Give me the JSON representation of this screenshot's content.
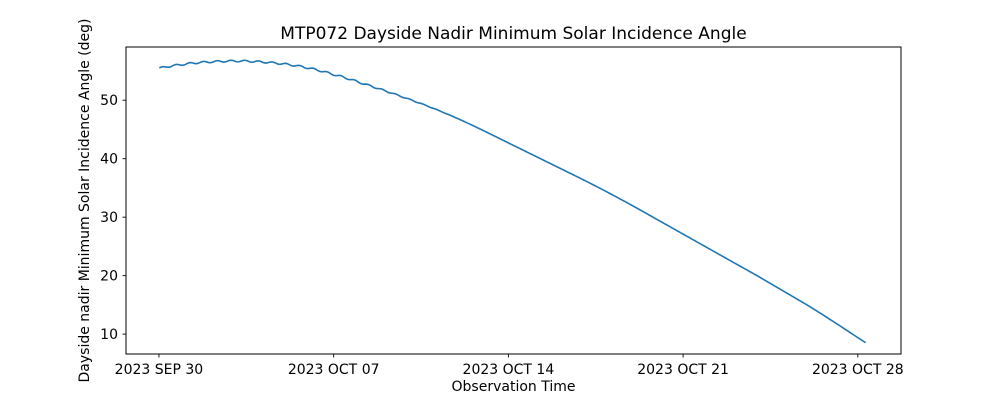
{
  "figure": {
    "background": "#ffffff"
  },
  "chart_data": {
    "type": "line",
    "title": "MTP072 Dayside Nadir Minimum Solar Incidence Angle",
    "xlabel": "Observation Time",
    "ylabel": "Dayside nadir Minimum Solar Incidence Angle (deg)",
    "x_unit": "days since 2023 SEP 30 00:00",
    "xlim": [
      -1.32,
      29.73
    ],
    "ylim": [
      6.6,
      59.1
    ],
    "grid": false,
    "legend": null,
    "line_color": "#1f77b4",
    "line_width": 1.6,
    "spine_color": "#000000",
    "xticks": [
      {
        "day": 0,
        "label": "2023 SEP 30"
      },
      {
        "day": 7,
        "label": "2023 OCT 07"
      },
      {
        "day": 14,
        "label": "2023 OCT 14"
      },
      {
        "day": 21,
        "label": "2023 OCT 21"
      },
      {
        "day": 28,
        "label": "2023 OCT 28"
      }
    ],
    "yticks": [
      10,
      20,
      30,
      40,
      50
    ],
    "series": [
      {
        "name": "dayside-nadir-minimum-solar-incidence-angle",
        "points": [
          [
            0.04,
            55.5
          ],
          [
            0.5,
            55.85
          ],
          [
            1,
            56.15
          ],
          [
            1.5,
            56.4
          ],
          [
            2,
            56.55
          ],
          [
            2.5,
            56.65
          ],
          [
            3,
            56.7
          ],
          [
            3.5,
            56.68
          ],
          [
            4,
            56.58
          ],
          [
            4.5,
            56.42
          ],
          [
            5,
            56.2
          ],
          [
            5.5,
            55.9
          ],
          [
            6,
            55.5
          ],
          [
            6.5,
            55.0
          ],
          [
            7,
            54.4
          ],
          [
            7.5,
            53.8
          ],
          [
            8,
            53.1
          ],
          [
            9,
            51.7
          ],
          [
            10,
            50.2
          ],
          [
            11,
            48.6
          ],
          [
            12,
            46.8
          ],
          [
            13,
            44.8
          ],
          [
            14,
            42.7
          ],
          [
            15,
            40.6
          ],
          [
            16,
            38.5
          ],
          [
            17,
            36.4
          ],
          [
            18,
            34.2
          ],
          [
            19,
            31.9
          ],
          [
            20,
            29.5
          ],
          [
            21,
            27.1
          ],
          [
            22,
            24.7
          ],
          [
            23,
            22.3
          ],
          [
            24,
            19.9
          ],
          [
            25,
            17.4
          ],
          [
            26,
            14.9
          ],
          [
            27,
            12.2
          ],
          [
            28,
            9.4
          ],
          [
            28.29,
            8.6
          ]
        ]
      }
    ],
    "ripple": {
      "amplitude_deg": 0.15,
      "period_days": 0.55,
      "fade_start_day": 8,
      "fade_end_day": 12
    }
  }
}
